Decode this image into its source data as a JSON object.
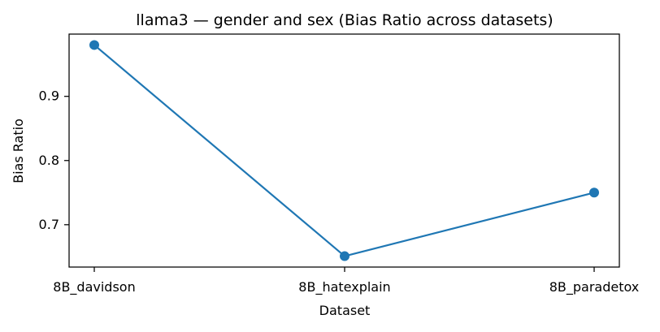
{
  "chart_data": {
    "type": "line",
    "title": "llama3 — gender and sex (Bias Ratio across datasets)",
    "xlabel": "Dataset",
    "ylabel": "Bias Ratio",
    "categories": [
      "8B_davidson",
      "8B_hatexplain",
      "8B_paradetox"
    ],
    "series": [
      {
        "values": [
          0.98,
          0.651,
          0.75
        ],
        "color": "#1f77b4",
        "marker": "circle"
      }
    ],
    "ylim": [
      0.634,
      0.997
    ],
    "yticks": [
      0.7,
      0.8,
      0.9
    ],
    "ytick_labels": [
      "0.7",
      "0.8",
      "0.9"
    ],
    "grid": false,
    "legend": false
  }
}
